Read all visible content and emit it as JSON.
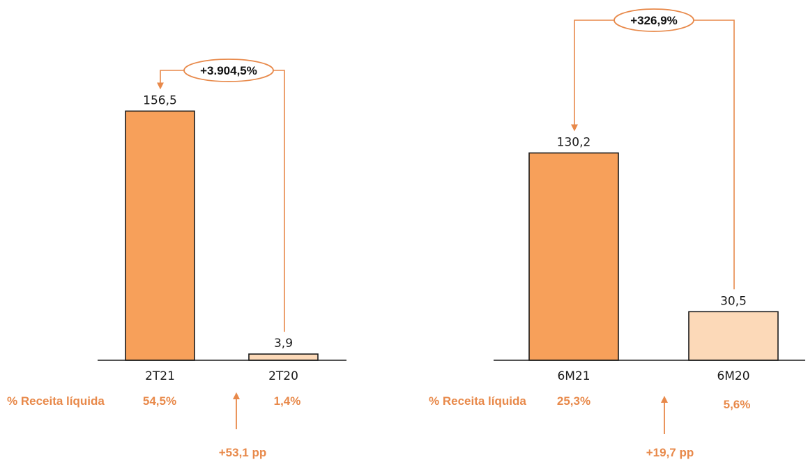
{
  "colors": {
    "bar_current": "#F7A05A",
    "bar_previous": "#FCD9B8",
    "accent": "#E8894A",
    "bar_border": "#1a1a1a",
    "axis": "#1a1a1a",
    "text": "#1a1a1a"
  },
  "chart_data": [
    {
      "type": "bar",
      "categories": [
        "2T21",
        "2T20"
      ],
      "values": [
        156.5,
        3.9
      ],
      "value_labels": [
        "156,5",
        "3,9"
      ],
      "ylim": [
        0,
        160
      ],
      "grid": false,
      "change_label": "+3.904,5%",
      "share_label": "% Receita líquida",
      "shares": [
        "54,5%",
        "1,4%"
      ],
      "share_change": "+53,1 pp"
    },
    {
      "type": "bar",
      "categories": [
        "6M21",
        "6M20"
      ],
      "values": [
        130.2,
        30.5
      ],
      "value_labels": [
        "130,2",
        "30,5"
      ],
      "ylim": [
        0,
        160
      ],
      "grid": false,
      "change_label": "+326,9%",
      "share_label": "% Receita líquida",
      "shares": [
        "25,3%",
        "5,6%"
      ],
      "share_change": "+19,7 pp"
    }
  ]
}
